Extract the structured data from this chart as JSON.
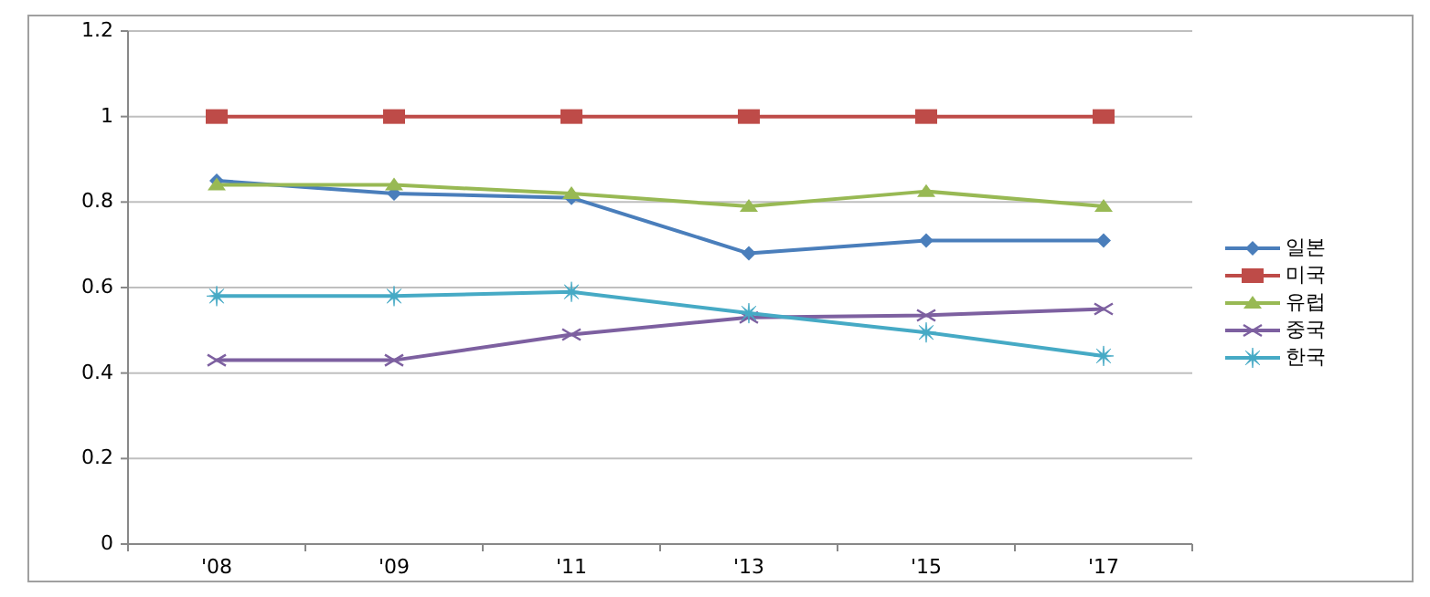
{
  "chart_data": {
    "type": "line",
    "categories": [
      "'08",
      "'09",
      "'11",
      "'13",
      "'15",
      "'17"
    ],
    "ylim": [
      0,
      1.2
    ],
    "yticks": [
      0,
      0.2,
      0.4,
      0.6,
      0.8,
      1,
      1.2
    ],
    "grid": "y",
    "legend": "right",
    "line_style": "solid",
    "series": [
      {
        "name": "일본",
        "color": "#4a7ebb",
        "marker": "diamond",
        "values": [
          0.85,
          0.82,
          0.81,
          0.68,
          0.71,
          0.71
        ]
      },
      {
        "name": "미국",
        "color": "#be4b48",
        "marker": "square",
        "values": [
          1,
          1,
          1,
          1,
          1,
          1
        ]
      },
      {
        "name": "유럽",
        "color": "#98b954",
        "marker": "triangle",
        "values": [
          0.84,
          0.84,
          0.82,
          0.79,
          0.825,
          0.79
        ]
      },
      {
        "name": "중국",
        "color": "#7d60a0",
        "marker": "cross",
        "values": [
          0.43,
          0.43,
          0.49,
          0.53,
          0.535,
          0.55
        ]
      },
      {
        "name": "한국",
        "color": "#46aac5",
        "marker": "star",
        "values": [
          0.58,
          0.58,
          0.59,
          0.54,
          0.495,
          0.44
        ]
      }
    ]
  }
}
